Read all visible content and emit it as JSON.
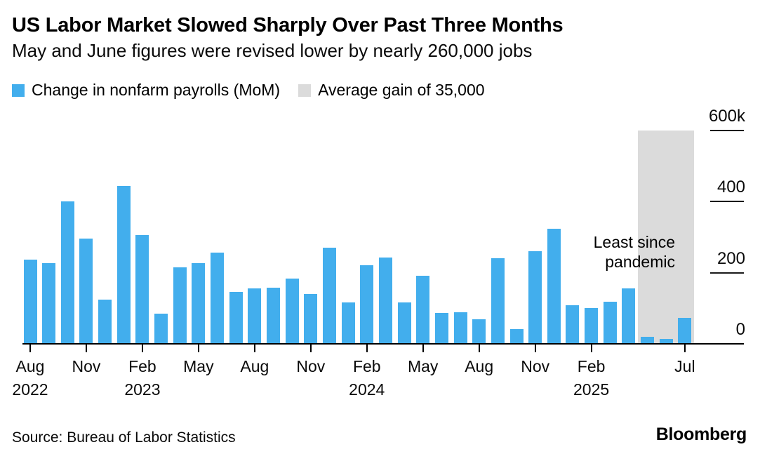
{
  "header": {
    "title": "US Labor Market Slowed Sharply Over Past Three Months",
    "subtitle": "May and June figures were revised lower by nearly 260,000 jobs"
  },
  "legend": {
    "items": [
      {
        "label": "Change in nonfarm payrolls (MoM)",
        "swatch_color": "#42AEED"
      },
      {
        "label": "Average gain of 35,000",
        "swatch_color": "#DBDBDB"
      }
    ]
  },
  "chart_data": {
    "type": "bar",
    "title": "US Labor Market Slowed Sharply Over Past Three Months",
    "subtitle": "May and June figures were revised lower by nearly 260,000 jobs",
    "unit": "thousands of jobs (MoM change in nonfarm payrolls)",
    "categories": [
      "Aug 2022",
      "Sep 2022",
      "Oct 2022",
      "Nov 2022",
      "Dec 2022",
      "Jan 2023",
      "Feb 2023",
      "Mar 2023",
      "Apr 2023",
      "May 2023",
      "Jun 2023",
      "Jul 2023",
      "Aug 2023",
      "Sep 2023",
      "Oct 2023",
      "Nov 2023",
      "Dec 2023",
      "Jan 2024",
      "Feb 2024",
      "Mar 2024",
      "Apr 2024",
      "May 2024",
      "Jun 2024",
      "Jul 2024",
      "Aug 2024",
      "Sep 2024",
      "Oct 2024",
      "Nov 2024",
      "Dec 2024",
      "Jan 2025",
      "Feb 2025",
      "Mar 2025",
      "Apr 2025",
      "May 2025",
      "Jun 2025",
      "Jul 2025"
    ],
    "values": [
      236,
      226,
      400,
      297,
      125,
      444,
      305,
      85,
      216,
      226,
      257,
      147,
      155,
      157,
      184,
      140,
      270,
      117,
      222,
      243,
      117,
      192,
      86,
      88,
      70,
      240,
      42,
      260,
      323,
      109,
      100,
      118,
      156,
      19,
      14,
      73
    ],
    "xlabel": "",
    "ylabel": "",
    "ylim": [
      0,
      600
    ],
    "grid": false,
    "legend_position": "top",
    "highlight_band": {
      "categories": [
        "May 2025",
        "Jun 2025",
        "Jul 2025"
      ],
      "meaning": "Average gain of 35,000",
      "color": "#DBDBDB",
      "extends_to": 600
    },
    "annotation_text": "Least since pandemic"
  },
  "axis": {
    "y_ticks": [
      {
        "label": "600k",
        "value": 600,
        "line": true
      },
      {
        "label": "400",
        "value": 400,
        "line": true
      },
      {
        "label": "200",
        "value": 200,
        "line": true
      },
      {
        "label": "0",
        "value": 0,
        "line": false
      }
    ],
    "x_ticks": [
      {
        "index": 0,
        "month": "Aug",
        "year": "2022"
      },
      {
        "index": 3,
        "month": "Nov",
        "year": ""
      },
      {
        "index": 6,
        "month": "Feb",
        "year": "2023"
      },
      {
        "index": 9,
        "month": "May",
        "year": ""
      },
      {
        "index": 12,
        "month": "Aug",
        "year": ""
      },
      {
        "index": 15,
        "month": "Nov",
        "year": ""
      },
      {
        "index": 18,
        "month": "Feb",
        "year": "2024"
      },
      {
        "index": 21,
        "month": "May",
        "year": ""
      },
      {
        "index": 24,
        "month": "Aug",
        "year": ""
      },
      {
        "index": 27,
        "month": "Nov",
        "year": ""
      },
      {
        "index": 30,
        "month": "Feb",
        "year": "2025"
      },
      {
        "index": 35,
        "month": "Jul",
        "year": ""
      }
    ]
  },
  "annotation": {
    "line1": "Least since",
    "line2": "pandemic"
  },
  "footer": {
    "source": "Source: Bureau of Labor Statistics",
    "brand": "Bloomberg"
  },
  "colors": {
    "bar": "#42AEED",
    "band": "#DBDBDB",
    "axis_line": "#000000",
    "text": "#000000"
  }
}
